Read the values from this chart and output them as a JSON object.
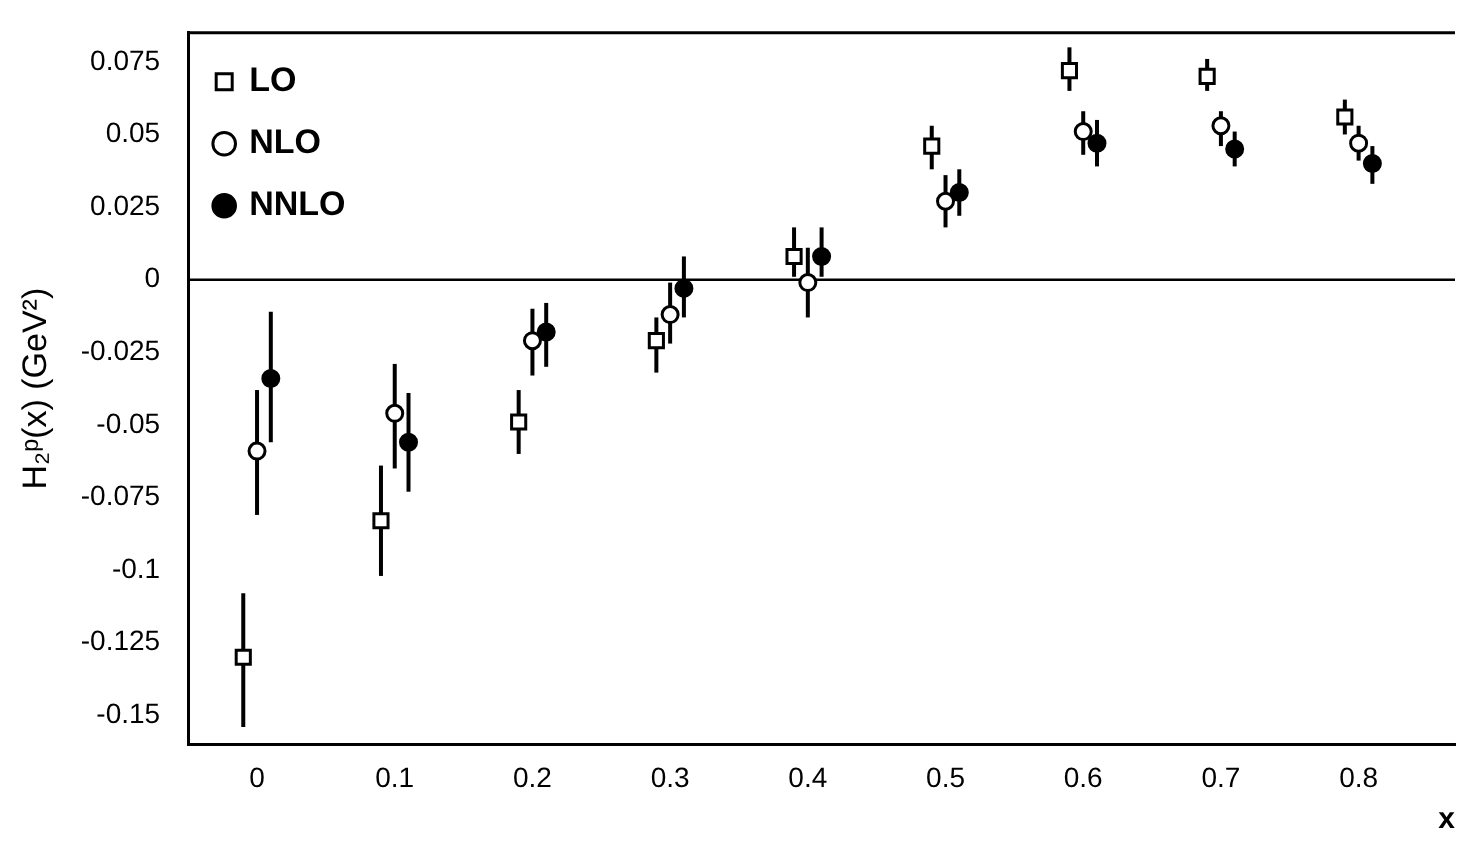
{
  "chart_data": {
    "type": "scatter",
    "ylabel": "H₂ᵖ(x) (GeV²)",
    "xlabel": "x",
    "xlim": [
      -0.05,
      0.87
    ],
    "xticks": [
      0,
      0.1,
      0.2,
      0.3,
      0.4,
      0.5,
      0.6,
      0.7,
      0.8
    ],
    "ylim": [
      -0.16,
      0.085
    ],
    "yticks": [
      -0.15,
      -0.125,
      -0.1,
      -0.075,
      -0.05,
      -0.025,
      0,
      0.025,
      0.05,
      0.075
    ],
    "grid": false,
    "legend": "top left",
    "ref_lines": [
      {
        "axis": "y",
        "value": 0,
        "color": "#000000"
      }
    ],
    "series": [
      {
        "name": "LO",
        "color": "#000000",
        "marker": "square",
        "x": [
          -0.01,
          0.09,
          0.19,
          0.29,
          0.39,
          0.49,
          0.59,
          0.69,
          0.79
        ],
        "values": [
          -0.13,
          -0.083,
          -0.049,
          -0.021,
          0.008,
          0.046,
          0.072,
          0.07,
          0.056
        ],
        "errors": [
          [
            -0.154,
            -0.108
          ],
          [
            -0.102,
            -0.064
          ],
          [
            -0.06,
            -0.038
          ],
          [
            -0.032,
            -0.013
          ],
          [
            0.001,
            0.018
          ],
          [
            0.038,
            0.053
          ],
          [
            0.065,
            0.08
          ],
          [
            0.065,
            0.076
          ],
          [
            0.05,
            0.062
          ]
        ]
      },
      {
        "name": "NLO",
        "color": "#000000",
        "marker": "circle",
        "x": [
          0,
          0.1,
          0.2,
          0.3,
          0.4,
          0.5,
          0.6,
          0.7,
          0.8
        ],
        "values": [
          -0.059,
          -0.046,
          -0.021,
          -0.012,
          -0.001,
          0.027,
          0.051,
          0.053,
          0.047
        ],
        "errors": [
          [
            -0.081,
            -0.038
          ],
          [
            -0.065,
            -0.029
          ],
          [
            -0.033,
            -0.01
          ],
          [
            -0.022,
            -0.001
          ],
          [
            -0.013,
            0.011
          ],
          [
            0.018,
            0.036
          ],
          [
            0.043,
            0.058
          ],
          [
            0.046,
            0.058
          ],
          [
            0.041,
            0.053
          ]
        ]
      },
      {
        "name": "NNLO",
        "color": "#000000",
        "marker": "circle",
        "x": [
          0.01,
          0.11,
          0.21,
          0.31,
          0.41,
          0.51,
          0.61,
          0.71,
          0.81
        ],
        "values": [
          -0.034,
          -0.056,
          -0.018,
          -0.003,
          0.008,
          0.03,
          0.047,
          0.045,
          0.04
        ],
        "errors": [
          [
            -0.056,
            -0.011
          ],
          [
            -0.073,
            -0.039
          ],
          [
            -0.03,
            -0.008
          ],
          [
            -0.013,
            0.008
          ],
          [
            0.001,
            0.018
          ],
          [
            0.022,
            0.038
          ],
          [
            0.039,
            0.055
          ],
          [
            0.039,
            0.051
          ],
          [
            0.033,
            0.046
          ]
        ]
      }
    ]
  }
}
